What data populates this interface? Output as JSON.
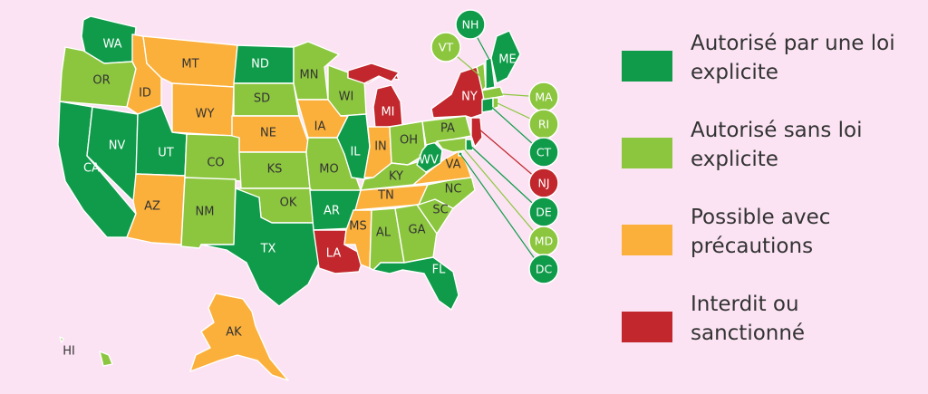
{
  "colors": {
    "explicit": "#0f9b4a",
    "implicit": "#8cc63f",
    "caution": "#fbb03b",
    "forbidden": "#c1272d"
  },
  "legend": [
    {
      "key": "explicit",
      "label": "Autorisé par une loi explicite"
    },
    {
      "key": "implicit",
      "label": "Autorisé sans loi explicite"
    },
    {
      "key": "caution",
      "label": "Possible avec précautions"
    },
    {
      "key": "forbidden",
      "label": "Interdit ou sanctionné"
    }
  ],
  "states": {
    "WA": {
      "name": "WA",
      "status": "explicit"
    },
    "OR": {
      "name": "OR",
      "status": "implicit"
    },
    "CA": {
      "name": "CA",
      "status": "explicit"
    },
    "NV": {
      "name": "NV",
      "status": "explicit"
    },
    "ID": {
      "name": "ID",
      "status": "caution"
    },
    "MT": {
      "name": "MT",
      "status": "caution"
    },
    "WY": {
      "name": "WY",
      "status": "caution"
    },
    "UT": {
      "name": "UT",
      "status": "explicit"
    },
    "AZ": {
      "name": "AZ",
      "status": "caution"
    },
    "CO": {
      "name": "CO",
      "status": "implicit"
    },
    "NM": {
      "name": "NM",
      "status": "implicit"
    },
    "ND": {
      "name": "ND",
      "status": "explicit"
    },
    "SD": {
      "name": "SD",
      "status": "implicit"
    },
    "NE": {
      "name": "NE",
      "status": "caution"
    },
    "KS": {
      "name": "KS",
      "status": "implicit"
    },
    "OK": {
      "name": "OK",
      "status": "implicit"
    },
    "TX": {
      "name": "TX",
      "status": "explicit"
    },
    "MN": {
      "name": "MN",
      "status": "implicit"
    },
    "IA": {
      "name": "IA",
      "status": "caution"
    },
    "MO": {
      "name": "MO",
      "status": "implicit"
    },
    "AR": {
      "name": "AR",
      "status": "explicit"
    },
    "LA": {
      "name": "LA",
      "status": "forbidden"
    },
    "WI": {
      "name": "WI",
      "status": "implicit"
    },
    "IL": {
      "name": "IL",
      "status": "explicit"
    },
    "MI": {
      "name": "MI",
      "status": "forbidden"
    },
    "IN": {
      "name": "IN",
      "status": "caution"
    },
    "OH": {
      "name": "OH",
      "status": "implicit"
    },
    "KY": {
      "name": "KY",
      "status": "implicit"
    },
    "TN": {
      "name": "TN",
      "status": "caution"
    },
    "MS": {
      "name": "MS",
      "status": "caution"
    },
    "AL": {
      "name": "AL",
      "status": "implicit"
    },
    "GA": {
      "name": "GA",
      "status": "implicit"
    },
    "FL": {
      "name": "FL",
      "status": "explicit"
    },
    "SC": {
      "name": "SC",
      "status": "implicit"
    },
    "NC": {
      "name": "NC",
      "status": "implicit"
    },
    "VA": {
      "name": "VA",
      "status": "caution"
    },
    "WV": {
      "name": "WV",
      "status": "explicit"
    },
    "PA": {
      "name": "PA",
      "status": "implicit"
    },
    "NY": {
      "name": "NY",
      "status": "forbidden"
    },
    "ME": {
      "name": "ME",
      "status": "explicit"
    },
    "AK": {
      "name": "AK",
      "status": "caution"
    },
    "HI": {
      "name": "HI",
      "status": "implicit"
    },
    "NH": {
      "name": "NH",
      "status": "explicit"
    },
    "VT": {
      "name": "VT",
      "status": "implicit"
    },
    "MA": {
      "name": "MA",
      "status": "implicit"
    },
    "RI": {
      "name": "RI",
      "status": "implicit"
    },
    "CT": {
      "name": "CT",
      "status": "explicit"
    },
    "NJ": {
      "name": "NJ",
      "status": "forbidden"
    },
    "DE": {
      "name": "DE",
      "status": "explicit"
    },
    "MD": {
      "name": "MD",
      "status": "implicit"
    },
    "DC": {
      "name": "DC",
      "status": "explicit"
    }
  }
}
